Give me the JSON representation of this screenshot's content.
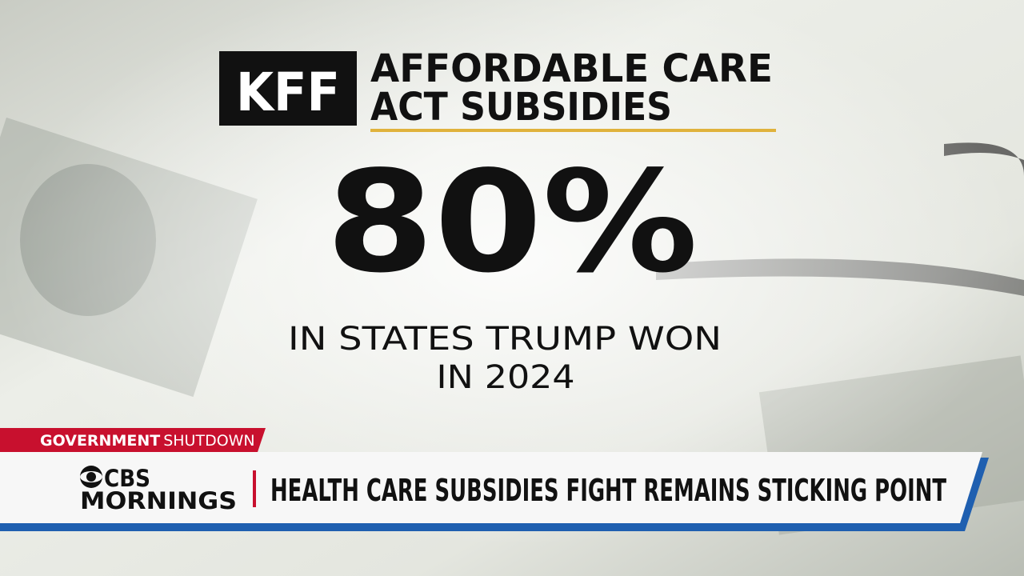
{
  "graphic": {
    "logo": "KFF",
    "title_lines": [
      "AFFORDABLE CARE",
      "ACT SUBSIDIES"
    ],
    "stat": "80%",
    "caption_lines": [
      "IN STATES TRUMP WON",
      "IN 2024"
    ]
  },
  "lower_third": {
    "tag_bold": "GOVERNMENT",
    "tag_rest": "SHUTDOWN",
    "brand_top": "CBS",
    "brand_bottom": "MORNINGS",
    "headline": "HEALTH CARE SUBSIDIES FIGHT REMAINS STICKING POINT"
  }
}
